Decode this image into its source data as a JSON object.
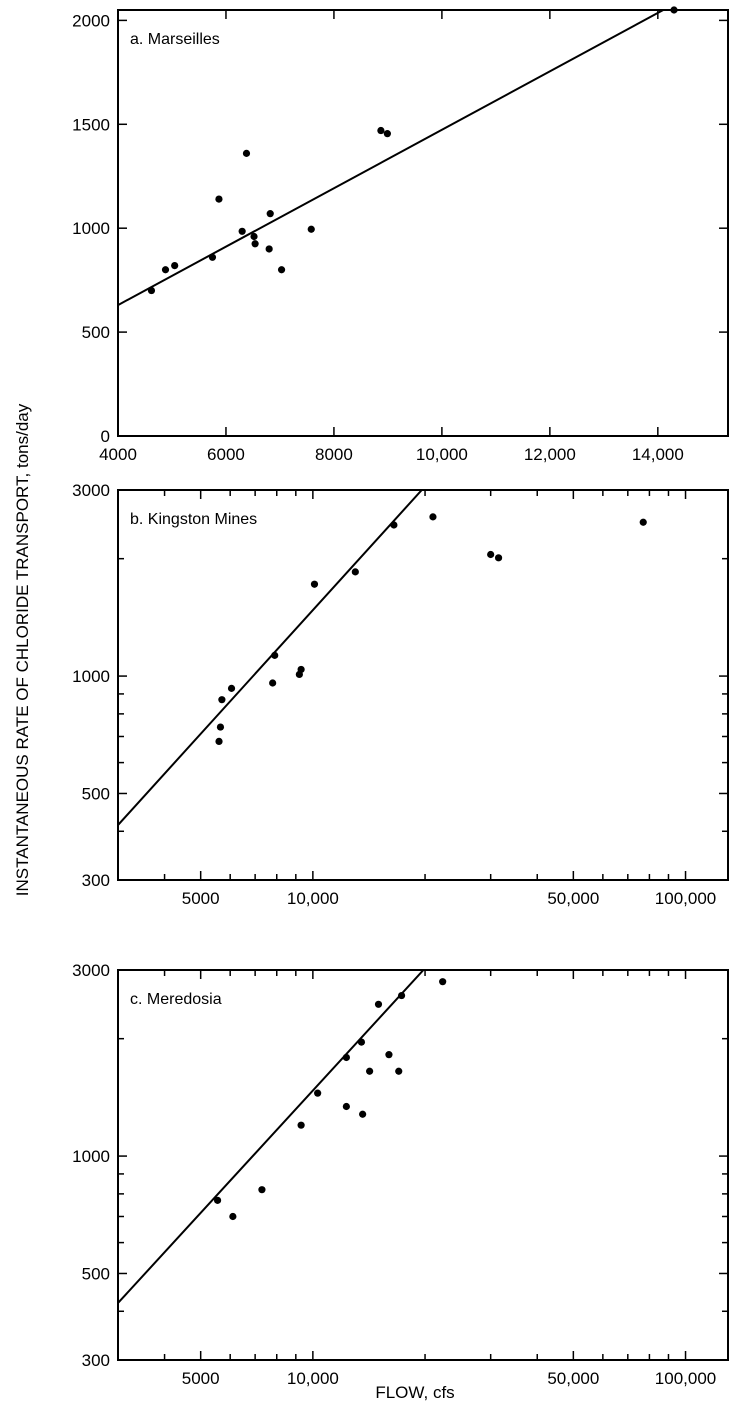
{
  "figure": {
    "ylabel": "INSTANTANEOUS RATE OF CHLORIDE TRANSPORT, tons/day",
    "xlabel": "FLOW, cfs"
  },
  "chart_data": [
    {
      "type": "scatter",
      "title": "a. Marseilles",
      "xscale": "linear",
      "yscale": "linear",
      "xlim": [
        4000,
        15300
      ],
      "ylim": [
        0,
        2050
      ],
      "xticks": [
        4000,
        6000,
        8000,
        10000,
        12000,
        14000
      ],
      "xtick_labels": [
        "4000",
        "6000",
        "8000",
        "10,000",
        "12,000",
        "14,000"
      ],
      "yticks": [
        0,
        500,
        1000,
        1500,
        2000
      ],
      "ytick_labels": [
        "0",
        "500",
        "1000",
        "1500",
        "2000"
      ],
      "points": [
        {
          "x": 4620,
          "y": 700
        },
        {
          "x": 4880,
          "y": 800
        },
        {
          "x": 5050,
          "y": 820
        },
        {
          "x": 5750,
          "y": 860
        },
        {
          "x": 5870,
          "y": 1140
        },
        {
          "x": 6300,
          "y": 985
        },
        {
          "x": 6380,
          "y": 1360
        },
        {
          "x": 6520,
          "y": 960
        },
        {
          "x": 6540,
          "y": 925
        },
        {
          "x": 6800,
          "y": 900
        },
        {
          "x": 6820,
          "y": 1070
        },
        {
          "x": 7030,
          "y": 800
        },
        {
          "x": 7580,
          "y": 995
        },
        {
          "x": 8870,
          "y": 1470
        },
        {
          "x": 8990,
          "y": 1455
        },
        {
          "x": 14300,
          "y": 2050
        }
      ],
      "fit_line": [
        {
          "x": 4000,
          "y": 630
        },
        {
          "x": 14100,
          "y": 2050
        }
      ]
    },
    {
      "type": "scatter",
      "title": "b. Kingston Mines",
      "xscale": "log",
      "yscale": "log",
      "xlim": [
        3000,
        130000
      ],
      "ylim": [
        300,
        3000
      ],
      "xticks": [
        5000,
        10000,
        50000,
        100000
      ],
      "xtick_labels": [
        "5000",
        "10,000",
        "50,000",
        "100,000"
      ],
      "yticks": [
        300,
        500,
        1000,
        3000
      ],
      "ytick_labels": [
        "300",
        "500",
        "1000",
        "3000"
      ],
      "points": [
        {
          "x": 5600,
          "y": 680
        },
        {
          "x": 5650,
          "y": 740
        },
        {
          "x": 5700,
          "y": 870
        },
        {
          "x": 6050,
          "y": 930
        },
        {
          "x": 7800,
          "y": 960
        },
        {
          "x": 7900,
          "y": 1130
        },
        {
          "x": 9200,
          "y": 1010
        },
        {
          "x": 9300,
          "y": 1040
        },
        {
          "x": 10100,
          "y": 1720
        },
        {
          "x": 13000,
          "y": 1850
        },
        {
          "x": 16500,
          "y": 2440
        },
        {
          "x": 21000,
          "y": 2560
        },
        {
          "x": 30000,
          "y": 2050
        },
        {
          "x": 31500,
          "y": 2010
        },
        {
          "x": 77000,
          "y": 2480
        }
      ],
      "fit_line": [
        {
          "x": 3000,
          "y": 415
        },
        {
          "x": 19600,
          "y": 3000
        }
      ]
    },
    {
      "type": "scatter",
      "title": "c. Meredosia",
      "xscale": "log",
      "yscale": "log",
      "xlim": [
        3000,
        130000
      ],
      "ylim": [
        300,
        3000
      ],
      "xticks": [
        5000,
        10000,
        50000,
        100000
      ],
      "xtick_labels": [
        "5000",
        "10,000",
        "50,000",
        "100,000"
      ],
      "yticks": [
        300,
        500,
        1000,
        3000
      ],
      "ytick_labels": [
        "300",
        "500",
        "1000",
        "3000"
      ],
      "points": [
        {
          "x": 5550,
          "y": 770
        },
        {
          "x": 6100,
          "y": 700
        },
        {
          "x": 7300,
          "y": 820
        },
        {
          "x": 9300,
          "y": 1200
        },
        {
          "x": 10300,
          "y": 1450
        },
        {
          "x": 12300,
          "y": 1790
        },
        {
          "x": 12300,
          "y": 1340
        },
        {
          "x": 13500,
          "y": 1960
        },
        {
          "x": 13600,
          "y": 1280
        },
        {
          "x": 14200,
          "y": 1650
        },
        {
          "x": 15000,
          "y": 2450
        },
        {
          "x": 16000,
          "y": 1820
        },
        {
          "x": 17000,
          "y": 1650
        },
        {
          "x": 17300,
          "y": 2580
        },
        {
          "x": 22300,
          "y": 2800
        }
      ],
      "fit_line": [
        {
          "x": 3000,
          "y": 420
        },
        {
          "x": 19800,
          "y": 3000
        }
      ]
    }
  ]
}
